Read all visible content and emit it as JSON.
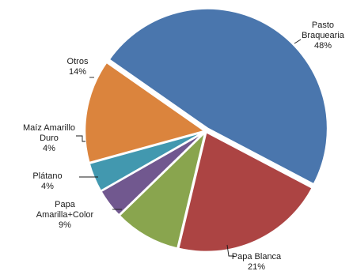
{
  "chart_data": {
    "type": "pie",
    "categories": [
      "Pasto Braquearia",
      "Papa Blanca",
      "Papa Amarilla+Color",
      "Plátano",
      "Maíz Amarillo Duro",
      "Otros"
    ],
    "values": [
      48,
      21,
      9,
      4,
      4,
      14
    ],
    "value_labels": [
      "48%",
      "21%",
      "9%",
      "4%",
      "4%",
      "14%"
    ],
    "label_lines": [
      [
        "Pasto",
        "Braquearia"
      ],
      [
        "Papa Blanca"
      ],
      [
        "Papa",
        "Amarilla+Color"
      ],
      [
        "Plátano"
      ],
      [
        "Maíz Amarillo",
        "Duro"
      ],
      [
        "Otros"
      ]
    ],
    "colors": [
      "#4a76ad",
      "#ac4443",
      "#89a54e",
      "#71588f",
      "#4298af",
      "#db843d"
    ],
    "legend": "none",
    "title": ""
  }
}
